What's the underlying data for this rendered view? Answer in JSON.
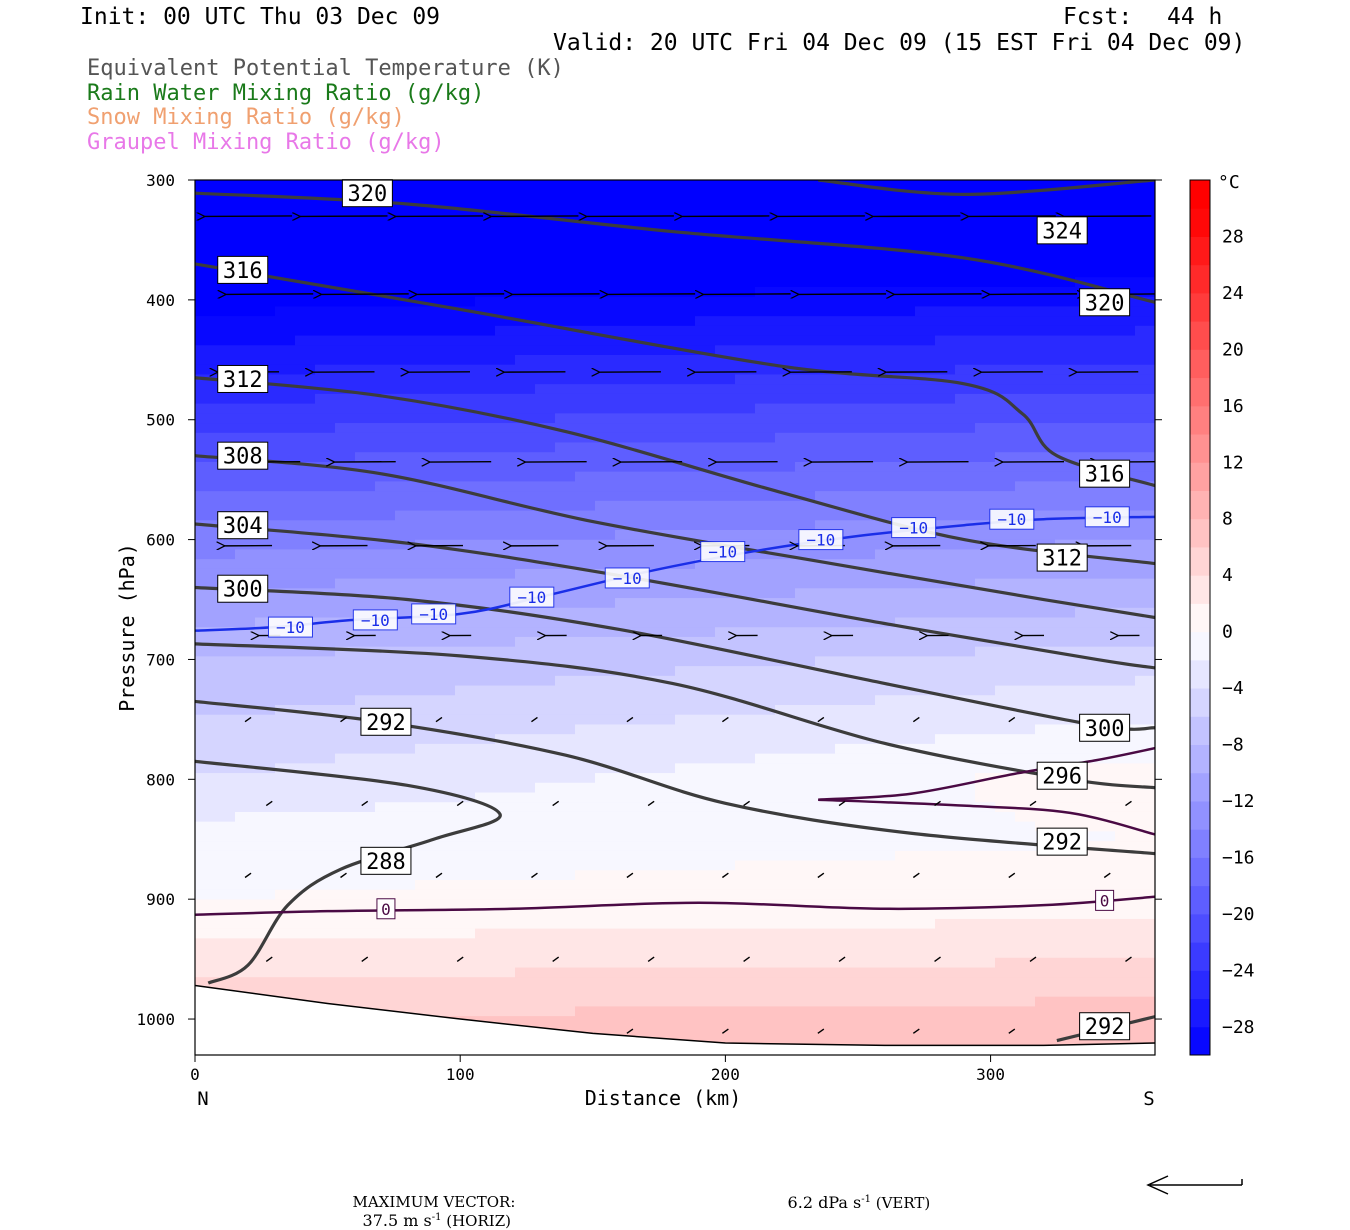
{
  "header": {
    "init": "Init: 00 UTC Thu 03 Dec 09",
    "fcst_label": "Fcst:",
    "fcst_value": "44 h",
    "valid": "Valid: 20 UTC Fri 04 Dec 09 (15 EST Fri 04 Dec 09)"
  },
  "legend": [
    {
      "text": "Equivalent Potential Temperature (K)",
      "color": "#555555"
    },
    {
      "text": "Rain Water Mixing Ratio (g/kg)",
      "color": "#1a7a1a"
    },
    {
      "text": "Snow Mixing Ratio (g/kg)",
      "color": "#f0a070"
    },
    {
      "text": "Graupel Mixing Ratio (g/kg)",
      "color": "#e878e8"
    }
  ],
  "footer": {
    "max_vector_label": "MAXIMUM VECTOR:",
    "horiz_value": "37.5 m s",
    "horiz_unit": " (HORIZ)",
    "vert_value": "6.2 dPa s",
    "vert_unit": " (VERT)",
    "exponent": "-1"
  },
  "chart_data": {
    "type": "heatmap",
    "description_fields": "Cross-section: temperature (°C) filled, theta-e (K) black contours, temperature isotherms (0, -10) colored contours, wind vectors",
    "xlabel": "Distance (km)",
    "ylabel": "Pressure (hPa)",
    "xlim": [
      0,
      362
    ],
    "ylim": [
      1030,
      300
    ],
    "x_ticks": [
      0,
      100,
      200,
      300
    ],
    "y_ticks": [
      300,
      400,
      500,
      600,
      700,
      800,
      900,
      1000
    ],
    "x_end_labels": {
      "left": "N",
      "right": "S"
    },
    "colorbar": {
      "unit": "°C",
      "tick_labels": [
        28,
        24,
        20,
        16,
        12,
        8,
        4,
        0,
        -4,
        -8,
        -12,
        -16,
        -20,
        -24,
        -28
      ],
      "levels": [
        -30,
        -28,
        -26,
        -24,
        -22,
        -20,
        -18,
        -16,
        -14,
        -12,
        -10,
        -8,
        -6,
        -4,
        -2,
        0,
        2,
        4,
        6,
        8,
        10,
        12,
        14,
        16,
        18,
        20,
        22,
        24,
        26,
        28,
        30,
        32
      ],
      "colors_cold": "#0000ff",
      "colors_warm": "#ff0000"
    },
    "temperature_profile_left": [
      [
        300,
        -42
      ],
      [
        400,
        -31
      ],
      [
        500,
        -23
      ],
      [
        600,
        -15
      ],
      [
        700,
        -8
      ],
      [
        800,
        -4
      ],
      [
        850,
        -1
      ],
      [
        900,
        0
      ],
      [
        950,
        3
      ],
      [
        1000,
        6
      ]
    ],
    "temperature_profile_right": [
      [
        300,
        -40
      ],
      [
        400,
        -28
      ],
      [
        500,
        -20
      ],
      [
        600,
        -12
      ],
      [
        700,
        -5
      ],
      [
        800,
        1
      ],
      [
        850,
        0
      ],
      [
        900,
        1
      ],
      [
        950,
        4
      ],
      [
        1000,
        7
      ]
    ],
    "theta_e_contours": [
      {
        "level": 324,
        "points": [
          [
            235,
            300
          ],
          [
            290,
            312
          ],
          [
            362,
            300
          ]
        ]
      },
      {
        "level": 320,
        "points": [
          [
            0,
            311
          ],
          [
            80,
            320
          ],
          [
            180,
            343
          ],
          [
            290,
            365
          ],
          [
            362,
            402
          ]
        ]
      },
      {
        "level": 316,
        "points": [
          [
            0,
            370
          ],
          [
            100,
            408
          ],
          [
            220,
            455
          ],
          [
            290,
            470
          ],
          [
            312,
            495
          ],
          [
            325,
            530
          ],
          [
            362,
            555
          ]
        ]
      },
      {
        "level": 312,
        "points": [
          [
            0,
            465
          ],
          [
            70,
            480
          ],
          [
            140,
            510
          ],
          [
            220,
            560
          ],
          [
            290,
            600
          ],
          [
            362,
            620
          ]
        ]
      },
      {
        "level": 308,
        "points": [
          [
            0,
            530
          ],
          [
            70,
            545
          ],
          [
            150,
            585
          ],
          [
            240,
            620
          ],
          [
            320,
            650
          ],
          [
            362,
            665
          ]
        ]
      },
      {
        "level": 304,
        "points": [
          [
            0,
            587
          ],
          [
            80,
            603
          ],
          [
            160,
            630
          ],
          [
            260,
            670
          ],
          [
            340,
            700
          ],
          [
            362,
            707
          ]
        ]
      },
      {
        "level": 300,
        "points": [
          [
            0,
            640
          ],
          [
            80,
            650
          ],
          [
            160,
            675
          ],
          [
            260,
            720
          ],
          [
            340,
            755
          ],
          [
            362,
            757
          ]
        ]
      },
      {
        "level": 296,
        "points": [
          [
            0,
            687
          ],
          [
            100,
            697
          ],
          [
            180,
            720
          ],
          [
            260,
            770
          ],
          [
            330,
            800
          ],
          [
            362,
            807
          ]
        ]
      },
      {
        "level": 292,
        "points": [
          [
            0,
            735
          ],
          [
            70,
            752
          ],
          [
            140,
            780
          ],
          [
            200,
            820
          ],
          [
            270,
            845
          ],
          [
            362,
            862
          ]
        ]
      },
      {
        "level": 288,
        "points": [
          [
            0,
            785
          ],
          [
            80,
            805
          ],
          [
            115,
            829
          ],
          [
            90,
            850
          ],
          [
            55,
            875
          ],
          [
            35,
            905
          ],
          [
            20,
            955
          ],
          [
            5,
            970
          ]
        ]
      },
      {
        "level": 292,
        "points": [
          [
            325,
            1018
          ],
          [
            362,
            998
          ]
        ]
      }
    ],
    "isotherms": [
      {
        "level": -10,
        "color": "#1a2ee8",
        "points": [
          [
            0,
            676
          ],
          [
            30,
            673
          ],
          [
            60,
            667
          ],
          [
            100,
            662
          ],
          [
            130,
            648
          ],
          [
            170,
            627
          ],
          [
            210,
            610
          ],
          [
            250,
            597
          ],
          [
            290,
            588
          ],
          [
            320,
            583
          ],
          [
            362,
            581
          ]
        ]
      },
      {
        "level": 0,
        "color": "#4a0a44",
        "points": [
          [
            0,
            913
          ],
          [
            50,
            910
          ],
          [
            120,
            908
          ],
          [
            190,
            903
          ],
          [
            260,
            908
          ],
          [
            320,
            905
          ],
          [
            362,
            898
          ]
        ]
      },
      {
        "level": 0,
        "color": "#4a0a44",
        "points": [
          [
            235,
            817
          ],
          [
            270,
            812
          ],
          [
            310,
            795
          ],
          [
            340,
            784
          ],
          [
            362,
            774
          ]
        ]
      },
      {
        "level": 0,
        "color": "#4a0a44",
        "points": [
          [
            235,
            817
          ],
          [
            290,
            822
          ],
          [
            330,
            828
          ],
          [
            362,
            846
          ]
        ]
      }
    ],
    "wind_vectors_note": "Westward (leftward) pointing arrows aloft, near-calm below 750 hPa",
    "surface_pressure": [
      [
        0,
        972
      ],
      [
        50,
        987
      ],
      [
        100,
        1000
      ],
      [
        150,
        1012
      ],
      [
        200,
        1020
      ],
      [
        260,
        1022
      ],
      [
        320,
        1022
      ],
      [
        362,
        1020
      ]
    ]
  }
}
